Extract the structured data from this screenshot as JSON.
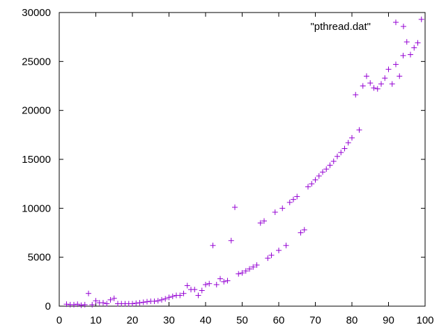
{
  "chart_data": {
    "type": "scatter",
    "title": "",
    "xlabel": "",
    "ylabel": "",
    "xlim": [
      0,
      100
    ],
    "ylim": [
      0,
      30000
    ],
    "xticks": [
      0,
      10,
      20,
      30,
      40,
      50,
      60,
      70,
      80,
      90,
      100
    ],
    "yticks": [
      0,
      5000,
      10000,
      15000,
      20000,
      25000,
      30000
    ],
    "grid": false,
    "legend_position": "top-right",
    "marker": "plus",
    "series": [
      {
        "name": "\"pthread.dat\"",
        "color": "#9400d3",
        "points": [
          [
            2,
            200
          ],
          [
            3,
            150
          ],
          [
            4,
            150
          ],
          [
            5,
            200
          ],
          [
            6,
            100
          ],
          [
            7,
            150
          ],
          [
            8,
            1300
          ],
          [
            9,
            150
          ],
          [
            10,
            550
          ],
          [
            11,
            350
          ],
          [
            12,
            350
          ],
          [
            13,
            250
          ],
          [
            14,
            650
          ],
          [
            15,
            800
          ],
          [
            16,
            250
          ],
          [
            17,
            250
          ],
          [
            18,
            250
          ],
          [
            19,
            250
          ],
          [
            20,
            250
          ],
          [
            21,
            300
          ],
          [
            22,
            350
          ],
          [
            23,
            400
          ],
          [
            24,
            450
          ],
          [
            25,
            500
          ],
          [
            26,
            500
          ],
          [
            27,
            550
          ],
          [
            28,
            650
          ],
          [
            29,
            750
          ],
          [
            30,
            900
          ],
          [
            31,
            1000
          ],
          [
            32,
            1100
          ],
          [
            33,
            1100
          ],
          [
            34,
            1300
          ],
          [
            35,
            2100
          ],
          [
            36,
            1700
          ],
          [
            37,
            1700
          ],
          [
            38,
            1100
          ],
          [
            39,
            1600
          ],
          [
            40,
            2200
          ],
          [
            41,
            2300
          ],
          [
            42,
            6200
          ],
          [
            43,
            2200
          ],
          [
            44,
            2800
          ],
          [
            45,
            2500
          ],
          [
            46,
            2600
          ],
          [
            47,
            6700
          ],
          [
            48,
            10100
          ],
          [
            49,
            3300
          ],
          [
            50,
            3400
          ],
          [
            51,
            3600
          ],
          [
            52,
            3800
          ],
          [
            53,
            4000
          ],
          [
            54,
            4200
          ],
          [
            55,
            8500
          ],
          [
            56,
            8700
          ],
          [
            57,
            4900
          ],
          [
            58,
            5200
          ],
          [
            59,
            9600
          ],
          [
            60,
            5700
          ],
          [
            61,
            10000
          ],
          [
            62,
            6200
          ],
          [
            63,
            10600
          ],
          [
            64,
            10900
          ],
          [
            65,
            11200
          ],
          [
            66,
            7500
          ],
          [
            67,
            7800
          ],
          [
            68,
            12200
          ],
          [
            69,
            12500
          ],
          [
            70,
            12900
          ],
          [
            71,
            13300
          ],
          [
            72,
            13700
          ],
          [
            73,
            14000
          ],
          [
            74,
            14400
          ],
          [
            75,
            14800
          ],
          [
            76,
            15300
          ],
          [
            77,
            15700
          ],
          [
            78,
            16100
          ],
          [
            79,
            16700
          ],
          [
            80,
            17200
          ],
          [
            81,
            21600
          ],
          [
            82,
            18000
          ],
          [
            83,
            22500
          ],
          [
            84,
            23500
          ],
          [
            85,
            22800
          ],
          [
            86,
            22300
          ],
          [
            87,
            22200
          ],
          [
            88,
            22700
          ],
          [
            89,
            23300
          ],
          [
            90,
            24200
          ],
          [
            91,
            22700
          ],
          [
            92,
            24700
          ],
          [
            93,
            23500
          ],
          [
            94,
            25600
          ],
          [
            95,
            27000
          ],
          [
            96,
            25700
          ],
          [
            97,
            26400
          ],
          [
            98,
            26900
          ],
          [
            92,
            29000
          ],
          [
            99,
            29300
          ]
        ]
      }
    ]
  }
}
